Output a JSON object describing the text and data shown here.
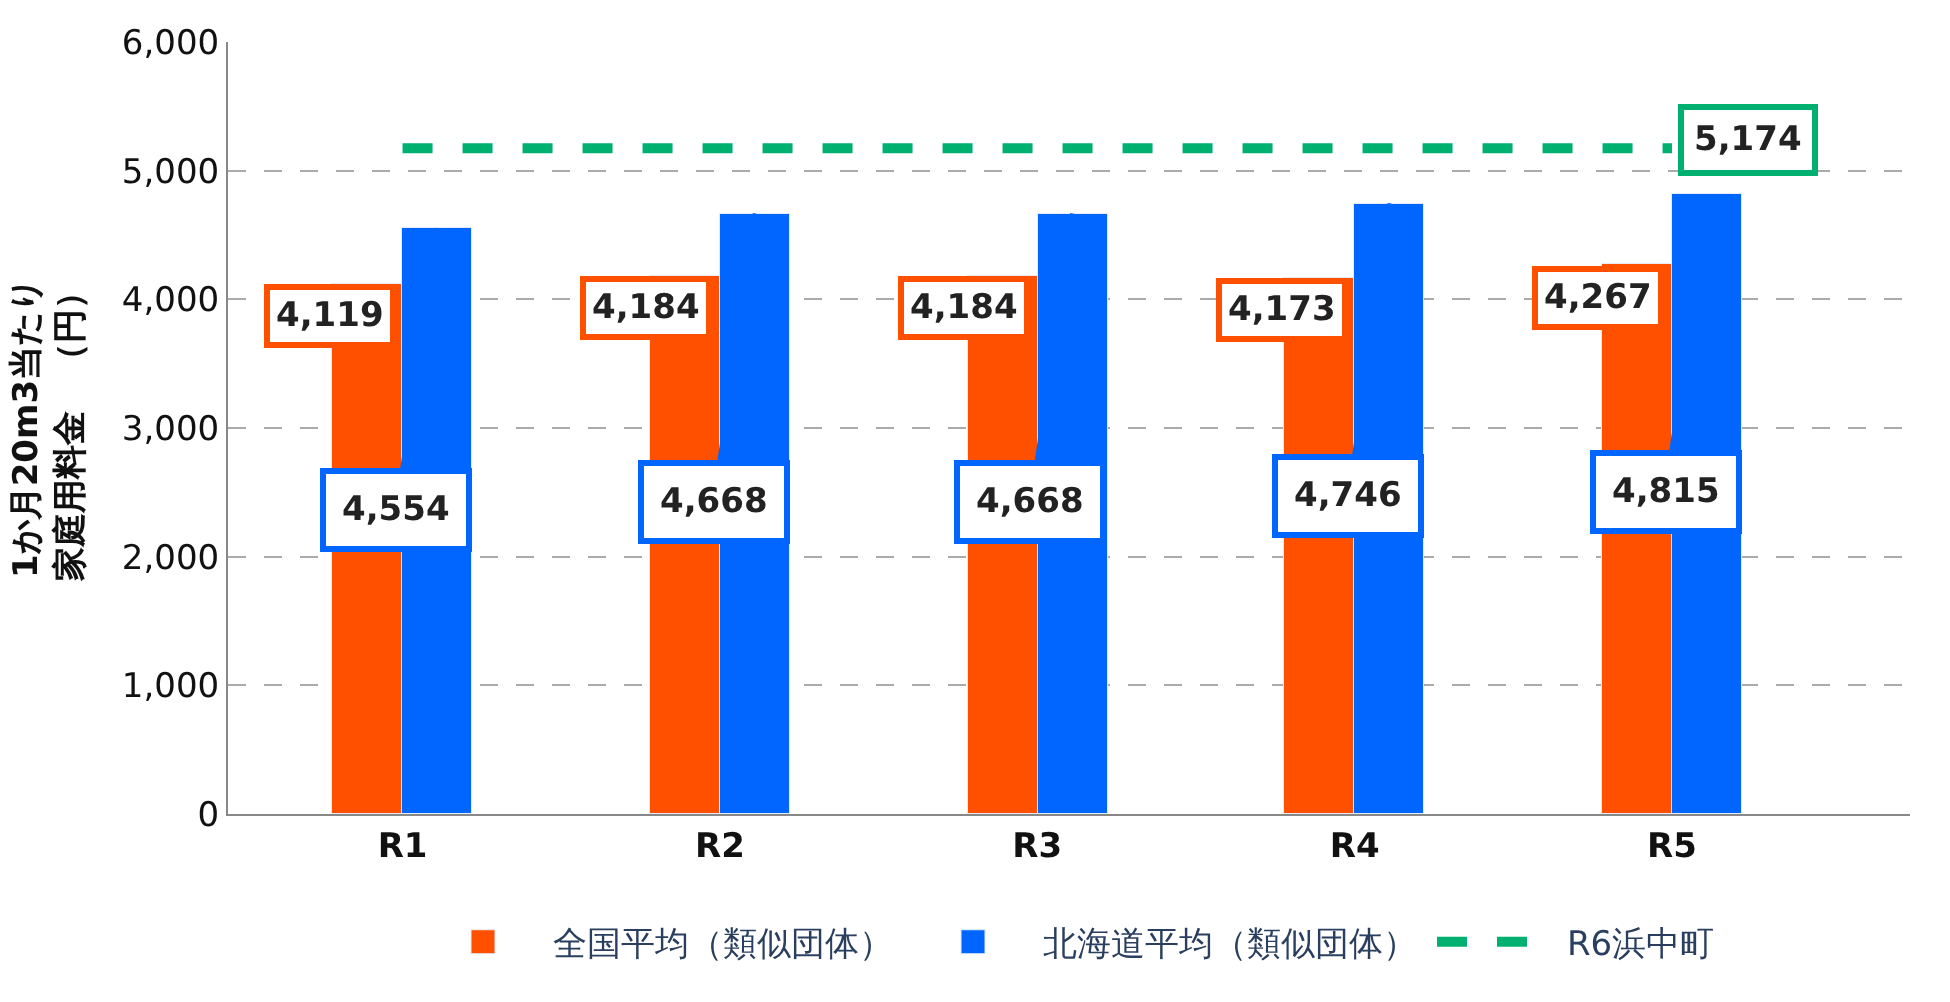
{
  "chart_data": {
    "type": "bar",
    "ylabel": "1か月20m3当たり家庭用料金　（円）",
    "categories": [
      "R1",
      "R2",
      "R3",
      "R4",
      "R5"
    ],
    "ylim": [
      0,
      6000
    ],
    "yticks": [
      {
        "value": 0,
        "label": "0"
      },
      {
        "value": 1000,
        "label": "1,000"
      },
      {
        "value": 2000,
        "label": "2,000"
      },
      {
        "value": 3000,
        "label": "3,000"
      },
      {
        "value": 4000,
        "label": "4,000"
      },
      {
        "value": 5000,
        "label": "5,000"
      },
      {
        "value": 6000,
        "label": "6,000"
      }
    ],
    "grid": "y",
    "legend": "bottom",
    "series": [
      {
        "name": "全国平均（類似団体）",
        "color": "#ff5000",
        "values": [
          4119,
          4184,
          4184,
          4173,
          4267
        ],
        "value_labels": [
          "4,119",
          "4,184",
          "4,184",
          "4,173",
          "4,267"
        ]
      },
      {
        "name": "北海道平均（類似団体）",
        "color": "#0066ff",
        "values": [
          4554,
          4668,
          4668,
          4746,
          4815
        ],
        "value_labels": [
          "4,554",
          "4,668",
          "4,668",
          "4,746",
          "4,815"
        ]
      },
      {
        "name": "R6浜中町",
        "type": "line",
        "line_style": "dashed",
        "marker": "none",
        "color": "#00b070",
        "values": [
          5174,
          5174,
          5174,
          5174,
          5174
        ],
        "value_labels": [
          null,
          null,
          null,
          null,
          "5,174"
        ]
      }
    ]
  }
}
